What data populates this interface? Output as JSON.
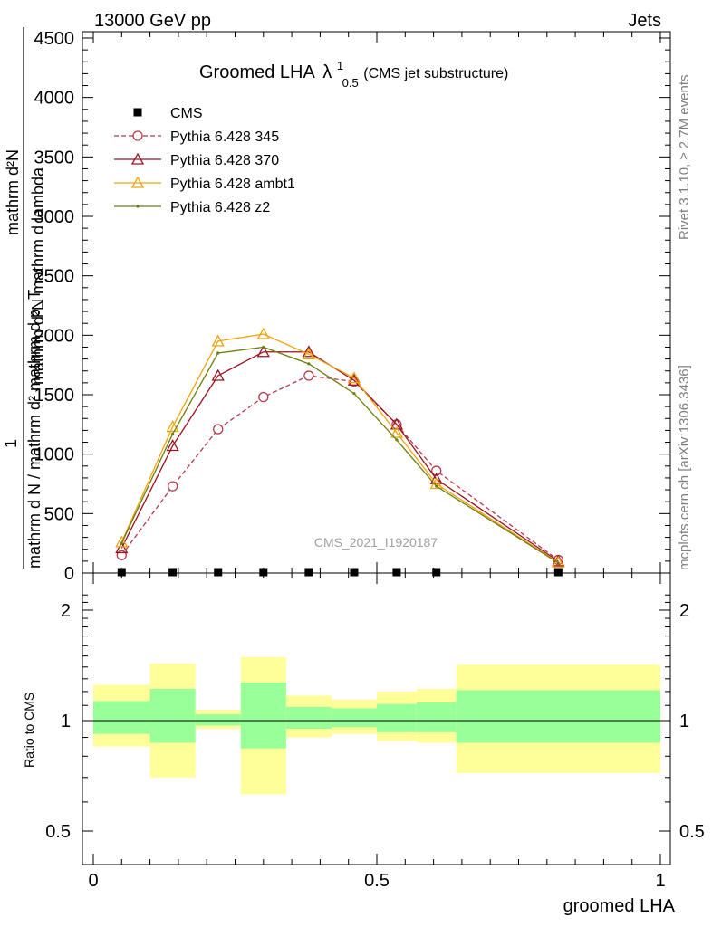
{
  "header": {
    "left": "13000 GeV pp",
    "right": "Jets"
  },
  "side_labels": {
    "rivet": "Rivet 3.1.10, ≥ 2.7M events",
    "mcplots": "mcplots.cern.ch [arXiv:1306.3436]"
  },
  "plot": {
    "title_main": "Groomed LHA",
    "title_lambda": "λ",
    "title_sup": "1",
    "title_sub": "0.5",
    "title_suffix": " (CMS jet substructure)",
    "watermark": "CMS_2021_I1920187",
    "ylabel_top": "mathrm d²N",
    "ylabel_top2": "mathrm d²N mathrm d lambda",
    "ylabel_frac_num": "1",
    "ylabel_bottom": "mathrm d N / mathrm d² mathrm d p_T",
    "ratio_ylabel": "Ratio to CMS",
    "xlabel": "groomed LHA"
  },
  "legend": [
    {
      "label": "CMS",
      "color": "#000000",
      "marker": "square"
    },
    {
      "label": "Pythia 6.428 345",
      "color": "#b5394c",
      "marker": "circle-open",
      "dash": true
    },
    {
      "label": "Pythia 6.428 370",
      "color": "#9b1020",
      "marker": "triangle-open"
    },
    {
      "label": "Pythia 6.428 ambt1",
      "color": "#f0a30a",
      "marker": "triangle-open"
    },
    {
      "label": "Pythia 6.428 z2",
      "color": "#6f7d0f",
      "marker": "dot"
    }
  ],
  "chart_data": {
    "type": "line",
    "xlabel": "groomed LHA",
    "xlim": [
      0,
      1
    ],
    "ylim": [
      0,
      4500
    ],
    "x_ticks": [
      0,
      0.5,
      1
    ],
    "y_ticks": [
      0,
      500,
      1000,
      1500,
      2000,
      2500,
      3000,
      3500,
      4000,
      4500
    ],
    "ratio_ylim": [
      0.4,
      2.3
    ],
    "ratio_ticks": [
      0.5,
      1,
      2
    ],
    "x": [
      0.05,
      0.14,
      0.22,
      0.3,
      0.38,
      0.46,
      0.535,
      0.605,
      0.82
    ],
    "series": [
      {
        "name": "CMS",
        "values": [
          3,
          3,
          3,
          3,
          3,
          3,
          3,
          3,
          3
        ]
      },
      {
        "name": "Pythia 6.428 345",
        "values": [
          150,
          730,
          1210,
          1480,
          1660,
          1610,
          1250,
          860,
          110
        ]
      },
      {
        "name": "Pythia 6.428 370",
        "values": [
          210,
          1070,
          1660,
          1860,
          1860,
          1620,
          1250,
          790,
          100
        ]
      },
      {
        "name": "Pythia 6.428 ambt1",
        "values": [
          260,
          1230,
          1950,
          2010,
          1840,
          1640,
          1180,
          750,
          90
        ]
      },
      {
        "name": "Pythia 6.428 z2",
        "values": [
          250,
          1170,
          1850,
          1900,
          1760,
          1510,
          1120,
          730,
          85
        ]
      }
    ],
    "ratio_bands": [
      {
        "x0": 0.0,
        "x1": 0.1,
        "yellow": [
          0.85,
          1.25
        ],
        "green": [
          0.92,
          1.13
        ]
      },
      {
        "x0": 0.1,
        "x1": 0.18,
        "yellow": [
          0.7,
          1.43
        ],
        "green": [
          0.87,
          1.22
        ]
      },
      {
        "x0": 0.18,
        "x1": 0.26,
        "yellow": [
          0.95,
          1.07
        ],
        "green": [
          0.97,
          1.04
        ]
      },
      {
        "x0": 0.26,
        "x1": 0.34,
        "yellow": [
          0.63,
          1.49
        ],
        "green": [
          0.84,
          1.27
        ]
      },
      {
        "x0": 0.34,
        "x1": 0.42,
        "yellow": [
          0.9,
          1.17
        ],
        "green": [
          0.95,
          1.09
        ]
      },
      {
        "x0": 0.42,
        "x1": 0.5,
        "yellow": [
          0.92,
          1.14
        ],
        "green": [
          0.96,
          1.08
        ]
      },
      {
        "x0": 0.5,
        "x1": 0.57,
        "yellow": [
          0.88,
          1.2
        ],
        "green": [
          0.93,
          1.11
        ]
      },
      {
        "x0": 0.57,
        "x1": 0.64,
        "yellow": [
          0.87,
          1.22
        ],
        "green": [
          0.93,
          1.12
        ]
      },
      {
        "x0": 0.64,
        "x1": 1.0,
        "yellow": [
          0.72,
          1.42
        ],
        "green": [
          0.87,
          1.21
        ]
      }
    ],
    "colors": {
      "yellow_band": "#ffff99",
      "green_band": "#99ff99"
    }
  }
}
